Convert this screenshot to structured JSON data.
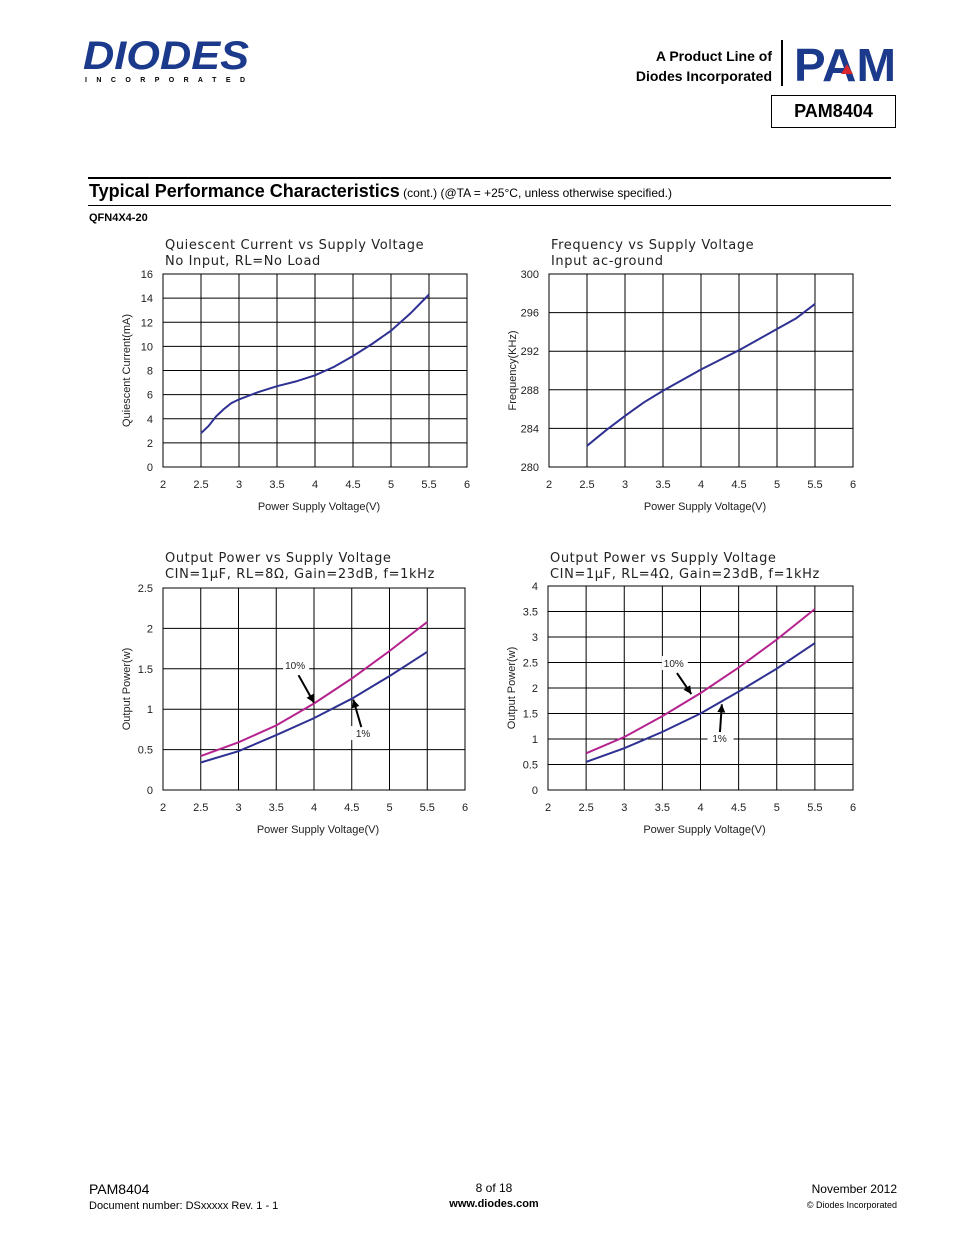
{
  "header": {
    "logo_name": "DIODES",
    "logo_sub": "I N C O R P O R A T E D",
    "product_line_1": "A Product Line of",
    "product_line_2": "Diodes Incorporated",
    "pam_logo": "PAM",
    "part_number": "PAM8404"
  },
  "section": {
    "title": "Typical Performance Characteristics",
    "note": " (cont.) (@TA = +25°C, unless otherwise specified.)",
    "package": "QFN4X4-20"
  },
  "colors": {
    "blue": "#2e3192",
    "magenta": "#b5238f",
    "grid": "#000000"
  },
  "chart_data": [
    {
      "type": "line",
      "title_1": "Quiescent Current vs Supply Voltage",
      "title_2": "No Input, RL=No Load",
      "xlabel": "Power Supply Voltage(V)",
      "ylabel": "Quiescent Current(mA)",
      "xlim": [
        2,
        6
      ],
      "ylim": [
        0,
        16
      ],
      "xticks": [
        "2",
        "2.5",
        "3",
        "3.5",
        "4",
        "4.5",
        "5",
        "5.5",
        "6"
      ],
      "yticks": [
        "0",
        "2",
        "4",
        "6",
        "8",
        "10",
        "12",
        "14",
        "16"
      ],
      "grid": true,
      "series": [
        {
          "color": "#2e3192",
          "x": [
            2.5,
            2.6,
            2.7,
            2.8,
            2.9,
            3.0,
            3.25,
            3.5,
            3.75,
            4.0,
            4.25,
            4.5,
            4.75,
            5.0,
            5.25,
            5.5
          ],
          "y": [
            2.8,
            3.4,
            4.2,
            4.8,
            5.3,
            5.6,
            6.2,
            6.7,
            7.1,
            7.6,
            8.3,
            9.2,
            10.2,
            11.3,
            12.7,
            14.3
          ]
        }
      ],
      "annotations": []
    },
    {
      "type": "line",
      "title_1": "Frequency vs Supply Voltage",
      "title_2": "Input ac-ground",
      "xlabel": "Power Supply Voltage(V)",
      "ylabel": "Frequency(KHz)",
      "xlim": [
        2,
        6
      ],
      "ylim": [
        280,
        300
      ],
      "xticks": [
        "2",
        "2.5",
        "3",
        "3.5",
        "4",
        "4.5",
        "5",
        "5.5",
        "6"
      ],
      "yticks": [
        "280",
        "284",
        "288",
        "292",
        "296",
        "300"
      ],
      "grid": true,
      "series": [
        {
          "color": "#2e3192",
          "x": [
            2.5,
            2.75,
            3.0,
            3.25,
            3.5,
            3.75,
            4.0,
            4.25,
            4.5,
            4.75,
            5.0,
            5.25,
            5.5
          ],
          "y": [
            282.2,
            283.8,
            285.3,
            286.7,
            287.9,
            289.0,
            290.1,
            291.1,
            292.1,
            293.2,
            294.3,
            295.4,
            296.9
          ]
        }
      ],
      "annotations": []
    },
    {
      "type": "line",
      "title_1": "Output Power vs Supply Voltage",
      "title_2": "CIN=1μF, RL=8Ω, Gain=23dB, f=1kHz",
      "xlabel": "Power Supply Voltage(V)",
      "ylabel": "Output Power(w)",
      "xlim": [
        2,
        6
      ],
      "ylim": [
        0,
        2.5
      ],
      "xticks": [
        "2",
        "2.5",
        "3",
        "3.5",
        "4",
        "4.5",
        "5",
        "5.5",
        "6"
      ],
      "yticks": [
        "0",
        "0.5",
        "1",
        "1.5",
        "2",
        "2.5"
      ],
      "grid": true,
      "series": [
        {
          "color": "#b5238f",
          "x": [
            2.5,
            3.0,
            3.5,
            4.0,
            4.5,
            5.0,
            5.5
          ],
          "y": [
            0.42,
            0.59,
            0.8,
            1.07,
            1.38,
            1.72,
            2.08
          ]
        },
        {
          "color": "#2e3192",
          "x": [
            2.5,
            3.0,
            3.5,
            4.0,
            4.5,
            5.0,
            5.5
          ],
          "y": [
            0.34,
            0.48,
            0.68,
            0.89,
            1.13,
            1.41,
            1.71
          ]
        }
      ],
      "annotations": [
        {
          "text": "10%",
          "tx": 3.75,
          "ty": 1.52,
          "ax": 4.0,
          "ay": 1.08
        },
        {
          "text": "1%",
          "tx": 4.65,
          "ty": 0.68,
          "ax": 4.52,
          "ay": 1.12
        }
      ]
    },
    {
      "type": "line",
      "title_1": "Output Power vs Supply Voltage",
      "title_2": "CIN=1μF, RL=4Ω, Gain=23dB, f=1kHz",
      "xlabel": "Power Supply Voltage(V)",
      "ylabel": "Output Power(w)",
      "xlim": [
        2,
        6
      ],
      "ylim": [
        0,
        4
      ],
      "xticks": [
        "2",
        "2.5",
        "3",
        "3.5",
        "4",
        "4.5",
        "5",
        "5.5",
        "6"
      ],
      "yticks": [
        "0",
        "0.5",
        "1",
        "1.5",
        "2",
        "2.5",
        "3",
        "3.5",
        "4"
      ],
      "grid": true,
      "series": [
        {
          "color": "#b5238f",
          "x": [
            2.5,
            3.0,
            3.5,
            4.0,
            4.5,
            5.0,
            5.5
          ],
          "y": [
            0.72,
            1.04,
            1.45,
            1.9,
            2.4,
            2.95,
            3.55
          ]
        },
        {
          "color": "#2e3192",
          "x": [
            2.5,
            3.0,
            3.5,
            4.0,
            4.5,
            5.0,
            5.5
          ],
          "y": [
            0.55,
            0.82,
            1.14,
            1.5,
            1.93,
            2.38,
            2.88
          ]
        }
      ],
      "annotations": [
        {
          "text": "10%",
          "tx": 3.65,
          "ty": 2.45,
          "ax": 3.88,
          "ay": 1.88
        },
        {
          "text": "1%",
          "tx": 4.25,
          "ty": 0.98,
          "ax": 4.28,
          "ay": 1.68
        }
      ]
    }
  ],
  "footer": {
    "part": "PAM8404",
    "doc": "Document number: DSxxxxx Rev. 1 - 1",
    "page": "8 of 18",
    "url": "www.diodes.com",
    "date": "November 2012",
    "copyright": "© Diodes Incorporated"
  }
}
